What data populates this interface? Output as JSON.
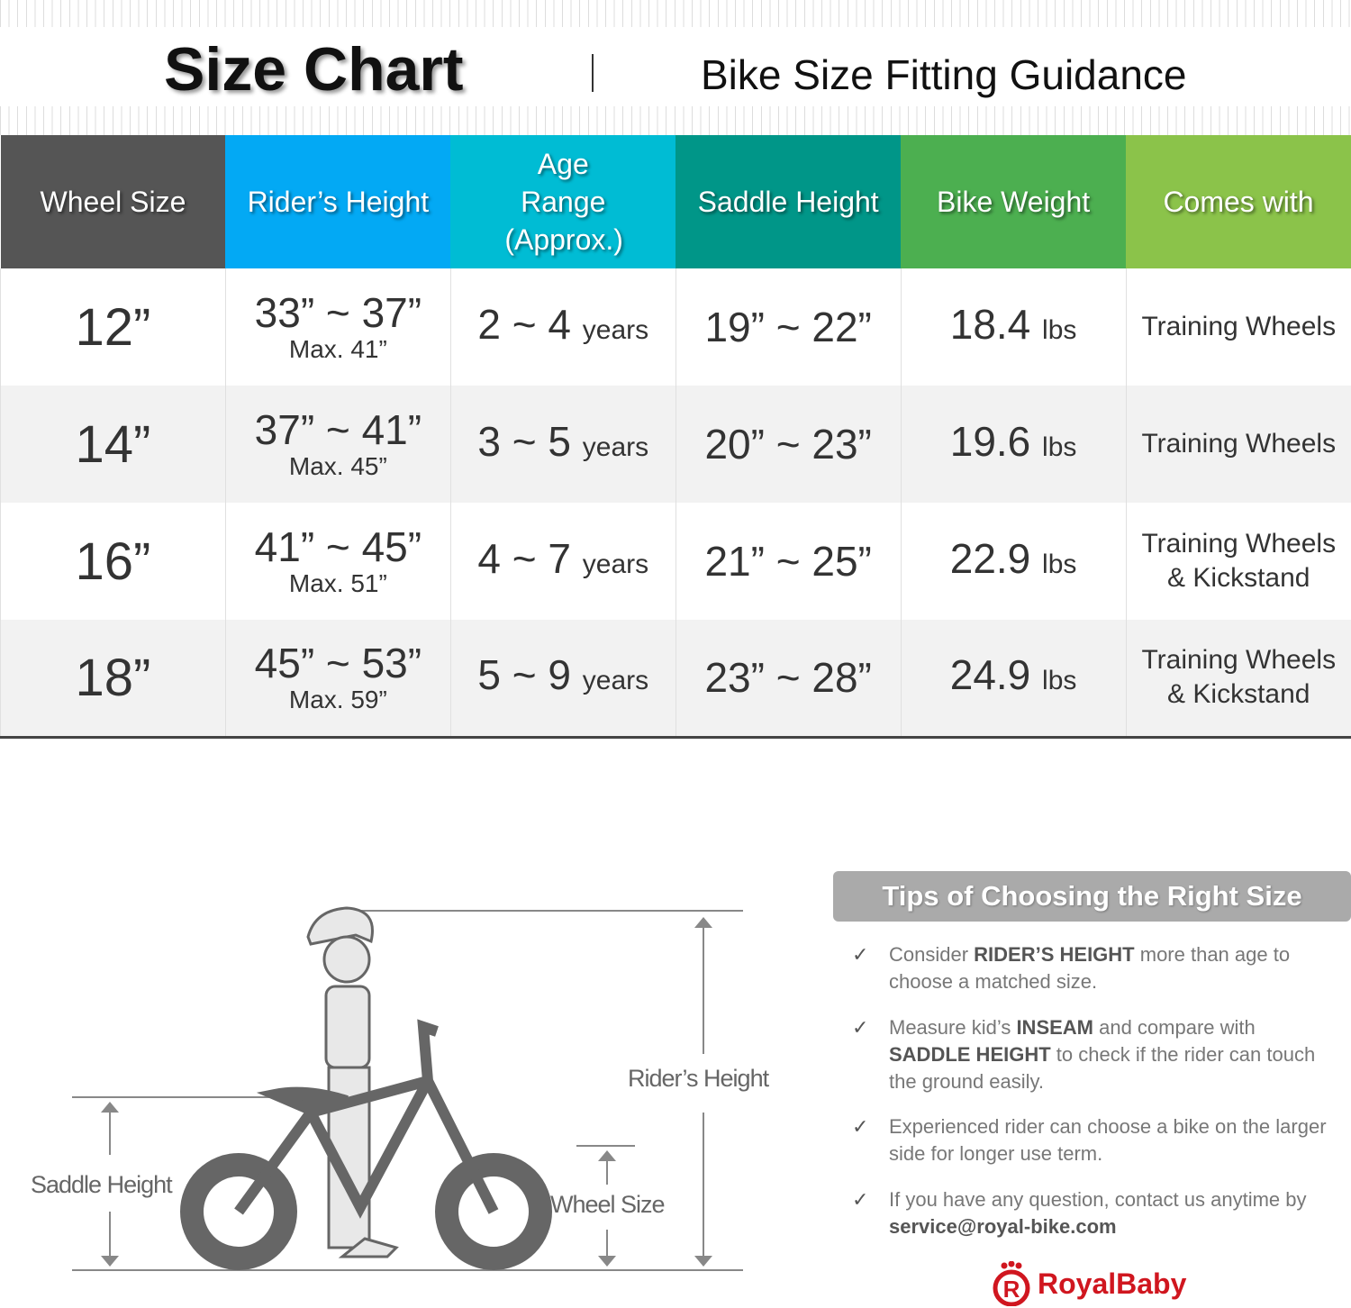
{
  "header": {
    "title": "Size Chart",
    "subtitle": "Bike Size Fitting Guidance"
  },
  "columns": [
    {
      "label": "Wheel Size",
      "color": "#555555"
    },
    {
      "label": "Rider’s Height",
      "color": "#03a9f4"
    },
    {
      "label": "Age Range (Approx.)",
      "color": "#00bcd4"
    },
    {
      "label": "Saddle Height",
      "color": "#009688"
    },
    {
      "label": "Bike Weight",
      "color": "#4caf50"
    },
    {
      "label": "Comes with",
      "color": "#8bc34a"
    }
  ],
  "rows": [
    {
      "wheel": "12”",
      "height": "33” ~ 37”",
      "max": "Max. 41”",
      "age": "2 ~ 4",
      "age_unit": "years",
      "saddle": "19” ~ 22”",
      "weight": "18.4",
      "weight_unit": "lbs",
      "comes": [
        "Training Wheels"
      ]
    },
    {
      "wheel": "14”",
      "height": "37” ~ 41”",
      "max": "Max. 45”",
      "age": "3 ~ 5",
      "age_unit": "years",
      "saddle": "20” ~ 23”",
      "weight": "19.6",
      "weight_unit": "lbs",
      "comes": [
        "Training Wheels"
      ]
    },
    {
      "wheel": "16”",
      "height": "41” ~ 45”",
      "max": "Max. 51”",
      "age": "4 ~ 7",
      "age_unit": "years",
      "saddle": "21” ~ 25”",
      "weight": "22.9",
      "weight_unit": "lbs",
      "comes": [
        "Training Wheels",
        "& Kickstand"
      ]
    },
    {
      "wheel": "18”",
      "height": "45” ~ 53”",
      "max": "Max. 59”",
      "age": "5 ~ 9",
      "age_unit": "years",
      "saddle": "23” ~ 28”",
      "weight": "24.9",
      "weight_unit": "lbs",
      "comes": [
        "Training Wheels",
        "& Kickstand"
      ]
    }
  ],
  "illustration": {
    "riders_height": "Rider’s Height",
    "saddle_height": "Saddle Height",
    "wheel_size": "Wheel Size"
  },
  "tips": {
    "title": "Tips of Choosing the Right Size",
    "check_icon": "✓",
    "items": [
      [
        {
          "t": "Consider "
        },
        {
          "t": "RIDER’S HEIGHT",
          "b": true
        },
        {
          "t": " more than age to choose a matched size."
        }
      ],
      [
        {
          "t": "Measure kid’s "
        },
        {
          "t": "INSEAM",
          "b": true
        },
        {
          "t": " and compare with "
        },
        {
          "t": "SADDLE HEIGHT",
          "b": true
        },
        {
          "t": " to check if the rider can touch the ground easily."
        }
      ],
      [
        {
          "t": "Experienced rider can choose a bike on the larger side for longer use term."
        }
      ],
      [
        {
          "t": "If you have any question, contact us anytime by "
        },
        {
          "t": "service@royal-bike.com",
          "b": true
        }
      ]
    ]
  },
  "brand": {
    "name": "RoyalBaby",
    "color": "#d0161f"
  }
}
